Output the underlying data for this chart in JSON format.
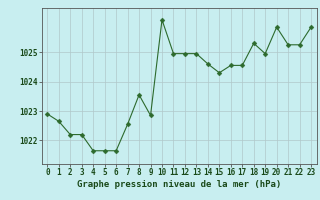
{
  "x": [
    0,
    1,
    2,
    3,
    4,
    5,
    6,
    7,
    8,
    9,
    10,
    11,
    12,
    13,
    14,
    15,
    16,
    17,
    18,
    19,
    20,
    21,
    22,
    23
  ],
  "y": [
    1022.9,
    1022.65,
    1022.2,
    1022.2,
    1021.65,
    1021.65,
    1021.65,
    1022.55,
    1023.55,
    1022.85,
    1026.1,
    1024.95,
    1024.95,
    1024.95,
    1024.6,
    1024.3,
    1024.55,
    1024.55,
    1025.3,
    1024.95,
    1025.85,
    1025.25,
    1025.25,
    1025.85
  ],
  "line_color": "#2d6a2d",
  "marker": "D",
  "marker_size": 2.5,
  "background_color": "#c8eef0",
  "grid_color": "#b0c8ca",
  "xlabel": "Graphe pression niveau de la mer (hPa)",
  "xlabel_color": "#1a4a1a",
  "xlabel_fontsize": 6.5,
  "tick_label_color": "#1a4a1a",
  "tick_fontsize": 5.5,
  "ylim": [
    1021.2,
    1026.5
  ],
  "yticks": [
    1022,
    1023,
    1024,
    1025
  ],
  "xlim": [
    -0.5,
    23.5
  ],
  "xticks": [
    0,
    1,
    2,
    3,
    4,
    5,
    6,
    7,
    8,
    9,
    10,
    11,
    12,
    13,
    14,
    15,
    16,
    17,
    18,
    19,
    20,
    21,
    22,
    23
  ]
}
